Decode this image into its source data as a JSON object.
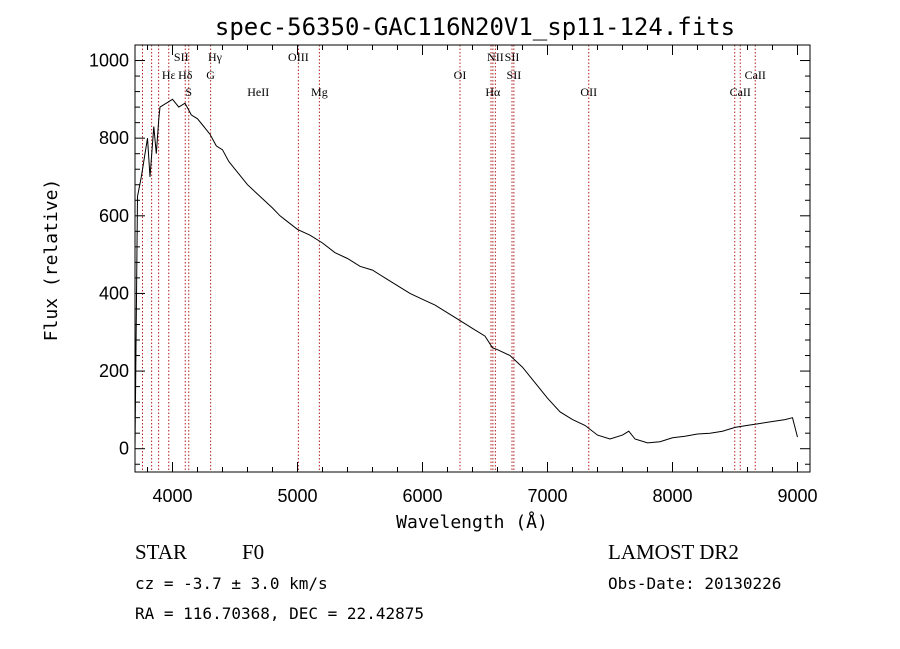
{
  "chart_data": {
    "type": "line",
    "title": "spec-56350-GAC116N20V1_sp11-124.fits",
    "xlabel": "Wavelength (Å)",
    "ylabel": "Flux (relative)",
    "xlim": [
      3700,
      9100
    ],
    "ylim": [
      -60,
      1040
    ],
    "x_ticks": [
      4000,
      5000,
      6000,
      7000,
      8000,
      9000
    ],
    "x_tick_labels": [
      "4000",
      "5000",
      "6000",
      "7000",
      "8000",
      "9000"
    ],
    "y_ticks": [
      0,
      200,
      400,
      600,
      800,
      1000
    ],
    "y_tick_labels": [
      "0",
      "200",
      "400",
      "600",
      "800",
      "1000"
    ],
    "grid": false,
    "series": [
      {
        "x": [
          3700,
          3720,
          3750,
          3780,
          3800,
          3820,
          3850,
          3870,
          3890,
          3900,
          3950,
          4000,
          4050,
          4100,
          4150,
          4200,
          4250,
          4300,
          4350,
          4400,
          4450,
          4500,
          4600,
          4700,
          4800,
          4860,
          4900,
          5000,
          5100,
          5200,
          5300,
          5400,
          5500,
          5600,
          5700,
          5800,
          5900,
          6000,
          6100,
          6200,
          6300,
          6400,
          6500,
          6560,
          6600,
          6700,
          6800,
          6900,
          7000,
          7100,
          7200,
          7300,
          7400,
          7500,
          7600,
          7650,
          7700,
          7800,
          7900,
          8000,
          8100,
          8200,
          8300,
          8400,
          8500,
          8600,
          8700,
          8800,
          8900,
          8960,
          9000
        ],
        "y": [
          0,
          650,
          700,
          760,
          800,
          700,
          830,
          760,
          850,
          880,
          890,
          900,
          880,
          890,
          860,
          850,
          830,
          810,
          780,
          770,
          740,
          720,
          680,
          650,
          620,
          600,
          590,
          565,
          550,
          530,
          505,
          490,
          470,
          460,
          440,
          420,
          400,
          385,
          370,
          350,
          330,
          310,
          290,
          260,
          255,
          240,
          210,
          170,
          130,
          95,
          75,
          60,
          35,
          25,
          35,
          45,
          25,
          15,
          18,
          28,
          32,
          38,
          40,
          45,
          55,
          60,
          65,
          70,
          75,
          80,
          30
        ]
      }
    ],
    "line_labels": [
      {
        "name": "Hγ",
        "x": 4340,
        "row": "top"
      },
      {
        "name": "Hδ",
        "x": 4102,
        "row": "second"
      },
      {
        "name": "Hε",
        "x": 3970,
        "row": "second"
      },
      {
        "name": "HeII",
        "x": 4686,
        "row": "third"
      },
      {
        "name": "S",
        "x": 4130,
        "row": "third"
      },
      {
        "name": "SII",
        "x": 4070,
        "row": "top"
      },
      {
        "name": "G",
        "x": 4305,
        "row": "second"
      },
      {
        "name": "OIII",
        "x": 5007,
        "row": "top"
      },
      {
        "name": "Mg",
        "x": 5175,
        "row": "third"
      },
      {
        "name": "OI",
        "x": 6300,
        "row": "second"
      },
      {
        "name": "NII",
        "x": 6583,
        "row": "top"
      },
      {
        "name": "SII",
        "x": 6716,
        "row": "top"
      },
      {
        "name": "Hα",
        "x": 6563,
        "row": "third"
      },
      {
        "name": "SII",
        "x": 6731,
        "row": "second"
      },
      {
        "name": "OII",
        "x": 7330,
        "row": "third"
      },
      {
        "name": "CaII",
        "x": 8542,
        "row": "third"
      },
      {
        "name": "CaII",
        "x": 8662,
        "row": "second"
      }
    ],
    "line_markers_x": [
      3760,
      3833,
      3889,
      3970,
      4102,
      4130,
      4305,
      5007,
      5175,
      6300,
      6548,
      6563,
      6583,
      6716,
      6731,
      7330,
      8498,
      8542,
      8662
    ]
  },
  "footer": {
    "class_label": "STAR",
    "subclass": "F0",
    "survey": "LAMOST DR2",
    "cz": "cz = -3.7 ± 3.0 km/s",
    "obs_date": "Obs-Date: 20130226",
    "coords": "RA = 116.70368, DEC =  22.42875"
  }
}
